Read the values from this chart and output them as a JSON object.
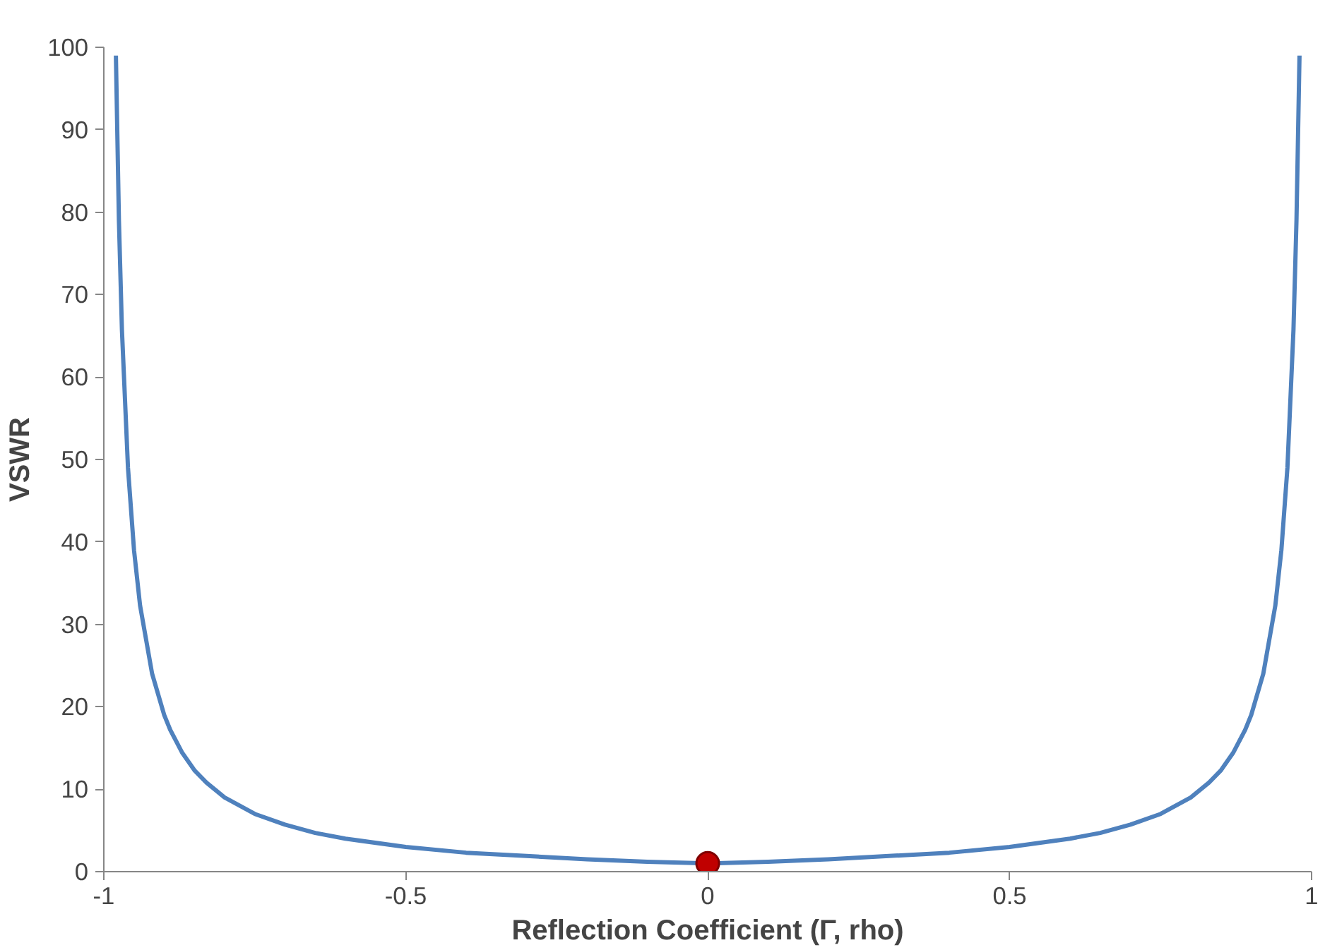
{
  "chart_data": {
    "type": "line",
    "xlabel": "Reflection Coefficient (Γ, rho)",
    "ylabel": "VSWR",
    "xlim": [
      -1,
      1
    ],
    "xticks": [
      -1,
      -0.5,
      0,
      0.5,
      1
    ],
    "ylim": [
      0,
      100
    ],
    "yticks": [
      0,
      10,
      20,
      30,
      40,
      50,
      60,
      70,
      80,
      90,
      100
    ],
    "grid": false,
    "series": [
      {
        "color": "#4f81bd",
        "x": [
          -0.98,
          -0.975,
          -0.97,
          -0.96,
          -0.95,
          -0.94,
          -0.92,
          -0.9,
          -0.89,
          -0.87,
          -0.85,
          -0.83,
          -0.8,
          -0.75,
          -0.7,
          -0.65,
          -0.6,
          -0.5,
          -0.4,
          -0.3,
          -0.2,
          -0.1,
          0,
          0.1,
          0.2,
          0.3,
          0.4,
          0.5,
          0.6,
          0.65,
          0.7,
          0.75,
          0.8,
          0.83,
          0.85,
          0.87,
          0.89,
          0.9,
          0.92,
          0.94,
          0.95,
          0.96,
          0.97,
          0.975,
          0.98
        ],
        "values": [
          99,
          79,
          65.7,
          49,
          39,
          32.3,
          24,
          19,
          17.2,
          14.4,
          12.3,
          10.8,
          9,
          7,
          5.7,
          4.7,
          4,
          3,
          2.3,
          1.9,
          1.5,
          1.2,
          1,
          1.2,
          1.5,
          1.9,
          2.3,
          3,
          4,
          4.7,
          5.7,
          7,
          9,
          10.8,
          12.3,
          14.4,
          17.2,
          19,
          24,
          32.3,
          39,
          49,
          65.7,
          79,
          99
        ]
      },
      {
        "type": "scatter",
        "color": "#c00000",
        "marker": "circle",
        "x": [
          0
        ],
        "values": [
          1
        ]
      }
    ]
  }
}
